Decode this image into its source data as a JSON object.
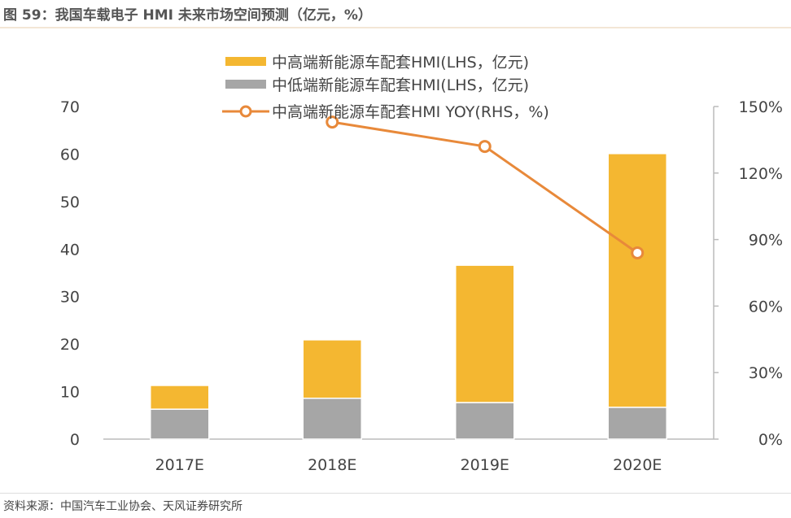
{
  "title": "图 59：我国车载电子 HMI 未来市场空间预测（亿元，%）",
  "source": "资料来源：中国汽车工业协会、天风证券研究所",
  "chart_data": {
    "type": "bar",
    "stacked": true,
    "title": "图 59：我国车载电子 HMI 未来市场空间预测（亿元，%）",
    "categories": [
      "2017E",
      "2018E",
      "2019E",
      "2020E"
    ],
    "series": [
      {
        "name": "中低端新能源车配套HMI(LHS，亿元)",
        "type": "bar",
        "axis": "left",
        "color": "#a6a6a6",
        "values": [
          6.3,
          8.6,
          7.7,
          6.7
        ]
      },
      {
        "name": "中高端新能源车配套HMI(LHS，亿元)",
        "type": "bar",
        "axis": "left",
        "color": "#f4b731",
        "values": [
          5.0,
          12.3,
          28.9,
          53.4
        ]
      },
      {
        "name": "中高端新能源车配套HMI YOY(RHS，%)",
        "type": "line",
        "axis": "right",
        "color": "#e8893a",
        "values": [
          null,
          143,
          132,
          84
        ]
      }
    ],
    "legend_order": [
      1,
      0,
      2
    ],
    "left_axis": {
      "ylim": [
        0,
        70
      ],
      "ticks": [
        "0",
        "10",
        "20",
        "30",
        "40",
        "50",
        "60",
        "70"
      ]
    },
    "right_axis": {
      "ylim": [
        0,
        150
      ],
      "ticks": [
        "0%",
        "30%",
        "60%",
        "90%",
        "120%",
        "150%"
      ]
    },
    "grid": false,
    "legend_position": "top"
  }
}
